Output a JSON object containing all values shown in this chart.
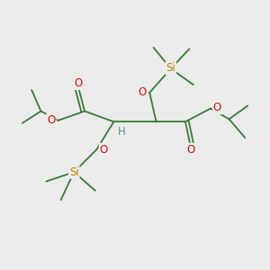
{
  "background_color": "#ebebeb",
  "bond_color": "#3a7a3a",
  "oxygen_color": "#cc1111",
  "silicon_color": "#bb8800",
  "hydrogen_color": "#5a9090",
  "figsize": [
    3.0,
    3.0
  ],
  "dpi": 100,
  "xlim": [
    0,
    10
  ],
  "ylim": [
    0,
    10
  ]
}
